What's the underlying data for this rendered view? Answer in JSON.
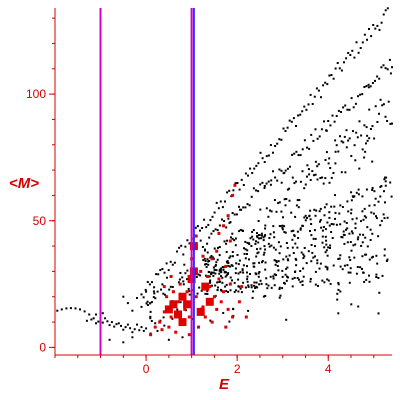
{
  "chart_data": {
    "type": "scatter",
    "xlabel": "E",
    "ylabel": "<M>",
    "xlim": [
      -2.0,
      5.4
    ],
    "ylim": [
      -3,
      134
    ],
    "x_ticks": [
      0,
      2,
      4
    ],
    "y_ticks": [
      0,
      50,
      100
    ],
    "x_tick_labels": [
      "0",
      "2",
      "4"
    ],
    "y_tick_labels": [
      "0",
      "50",
      "100"
    ],
    "grid": false,
    "colors": {
      "axis": "#d40000",
      "black_points": "#000000",
      "red_points": "#e00000",
      "vline_magenta": "#d000d0",
      "vline_blue": "#3030ff"
    },
    "vertical_lines": [
      {
        "x": -1.0,
        "color": "#d000d0"
      },
      {
        "x": 1.0,
        "color": "#d000d0"
      },
      {
        "x": 1.05,
        "color": "#3030ff"
      }
    ],
    "black_series": {
      "upper_band": {
        "x_start": -0.1,
        "x_end": 5.4,
        "y_start": 20,
        "y_end": 134
      },
      "mid_band": {
        "x_start": 0.4,
        "x_end": 5.4,
        "y_start": 15,
        "y_end": 95
      },
      "low_cloud": {
        "x_start": 1.3,
        "x_end": 5.4,
        "y_center_start": 28,
        "y_center_end": 48
      },
      "left_arc": [
        [
          -1.95,
          14.5
        ],
        [
          -1.85,
          15.0
        ],
        [
          -1.75,
          15.4
        ],
        [
          -1.65,
          15.5
        ],
        [
          -1.55,
          15.4
        ],
        [
          -1.45,
          15.0
        ],
        [
          -1.35,
          14.2
        ],
        [
          -1.25,
          13.0
        ],
        [
          -1.15,
          11.5
        ],
        [
          -1.05,
          10.2
        ],
        [
          -0.95,
          9.8
        ],
        [
          -0.85,
          10.3
        ],
        [
          -0.75,
          10.0
        ],
        [
          -0.65,
          9.2
        ],
        [
          -0.55,
          8.5
        ],
        [
          -0.45,
          8.0
        ],
        [
          -0.35,
          7.6
        ],
        [
          -0.25,
          7.2
        ],
        [
          -0.15,
          6.8
        ],
        [
          -0.05,
          6.5
        ]
      ],
      "extra": [
        [
          -1.3,
          10.5
        ],
        [
          -1.2,
          11.0
        ],
        [
          -1.1,
          9.5
        ],
        [
          -0.9,
          11.5
        ],
        [
          -0.8,
          8.8
        ],
        [
          -0.7,
          8.2
        ],
        [
          -0.6,
          9.5
        ],
        [
          -0.5,
          7.0
        ],
        [
          -0.4,
          9.0
        ],
        [
          -0.3,
          6.0
        ],
        [
          -0.2,
          9.0
        ],
        [
          -0.1,
          8.0
        ],
        [
          0.0,
          7.5
        ],
        [
          0.1,
          5.5
        ],
        [
          0.2,
          9.5
        ],
        [
          -0.5,
          20.0
        ],
        [
          -0.4,
          17.5
        ],
        [
          -0.3,
          14.5
        ],
        [
          -0.2,
          19.5
        ],
        [
          -0.1,
          16.0
        ],
        [
          0.0,
          22.0
        ],
        [
          0.1,
          14.0
        ],
        [
          -0.8,
          3.0
        ],
        [
          -0.5,
          2.0
        ],
        [
          -0.3,
          4.0
        ],
        [
          0.25,
          6.5
        ],
        [
          0.5,
          3.0
        ],
        [
          0.8,
          4.0
        ],
        [
          -1.1,
          13.0
        ],
        [
          -0.95,
          13.5
        ]
      ]
    },
    "red_series": {
      "big_points": [
        [
          1.05,
          40
        ],
        [
          1.05,
          30
        ],
        [
          1.0,
          27
        ],
        [
          0.8,
          20
        ],
        [
          0.9,
          17
        ],
        [
          0.8,
          10
        ],
        [
          1.2,
          14
        ],
        [
          1.3,
          24
        ],
        [
          0.6,
          17
        ],
        [
          1.4,
          18
        ],
        [
          0.5,
          15
        ],
        [
          0.7,
          13
        ]
      ],
      "small_points": [
        [
          0.3,
          10
        ],
        [
          0.4,
          14
        ],
        [
          0.45,
          20
        ],
        [
          0.5,
          8
        ],
        [
          0.55,
          12
        ],
        [
          0.6,
          22
        ],
        [
          0.65,
          6
        ],
        [
          0.7,
          18
        ],
        [
          0.75,
          25
        ],
        [
          0.85,
          15
        ],
        [
          0.9,
          22
        ],
        [
          0.95,
          12
        ],
        [
          1.0,
          35
        ],
        [
          1.1,
          20
        ],
        [
          1.15,
          8
        ],
        [
          1.2,
          30
        ],
        [
          1.25,
          16
        ],
        [
          1.3,
          12
        ],
        [
          1.35,
          28
        ],
        [
          1.4,
          24
        ],
        [
          1.45,
          10
        ],
        [
          1.5,
          20
        ],
        [
          1.55,
          15
        ],
        [
          1.6,
          27
        ],
        [
          1.65,
          18
        ],
        [
          1.7,
          22
        ],
        [
          1.75,
          32
        ],
        [
          1.8,
          15
        ],
        [
          1.85,
          25
        ],
        [
          1.9,
          12
        ],
        [
          0.35,
          7
        ],
        [
          0.2,
          8
        ],
        [
          0.1,
          5
        ],
        [
          1.6,
          45
        ],
        [
          1.7,
          48
        ],
        [
          1.8,
          52
        ],
        [
          1.9,
          60
        ],
        [
          1.95,
          64
        ],
        [
          1.55,
          38
        ],
        [
          1.85,
          42
        ],
        [
          1.45,
          35
        ],
        [
          2.05,
          18
        ],
        [
          2.1,
          24
        ],
        [
          2.2,
          12
        ],
        [
          0.55,
          28
        ],
        [
          1.1,
          44
        ],
        [
          0.95,
          5
        ],
        [
          0.4,
          24
        ],
        [
          1.75,
          8
        ],
        [
          1.25,
          36
        ]
      ]
    }
  }
}
